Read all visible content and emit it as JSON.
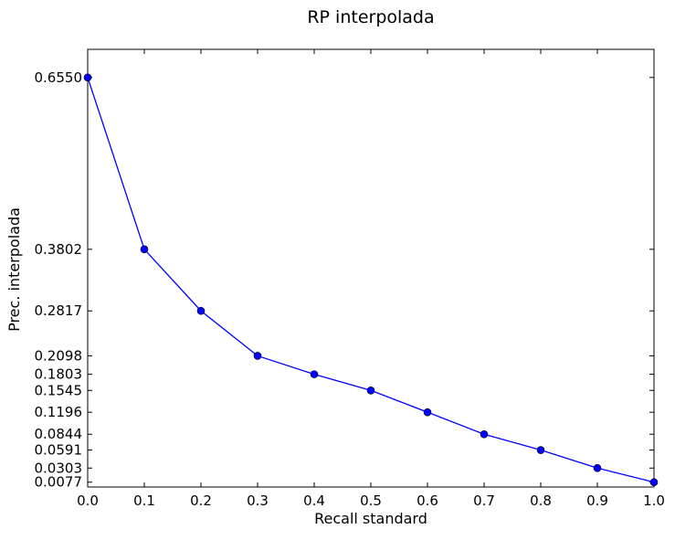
{
  "chart_data": {
    "type": "line",
    "title": "RP interpolada",
    "xlabel": "Recall standard",
    "ylabel": "Prec. interpolada",
    "xlim": [
      0.0,
      1.0
    ],
    "ylim": [
      0.0,
      0.7
    ],
    "x_ticks": [
      "0.0",
      "0.1",
      "0.2",
      "0.3",
      "0.4",
      "0.5",
      "0.6",
      "0.7",
      "0.8",
      "0.9",
      "1.0"
    ],
    "y_ticks": [
      "0.0077",
      "0.0303",
      "0.0591",
      "0.0844",
      "0.1196",
      "0.1545",
      "0.1803",
      "0.2098",
      "0.2817",
      "0.3802",
      "0.6550"
    ],
    "grid": false,
    "color": "#0000ff",
    "series": [
      {
        "x": [
          0.0,
          0.1,
          0.2,
          0.3,
          0.4,
          0.5,
          0.6,
          0.7,
          0.8,
          0.9,
          1.0
        ],
        "y": [
          0.655,
          0.3802,
          0.2817,
          0.2098,
          0.1803,
          0.1545,
          0.1196,
          0.0844,
          0.0591,
          0.0303,
          0.0077
        ]
      }
    ]
  }
}
